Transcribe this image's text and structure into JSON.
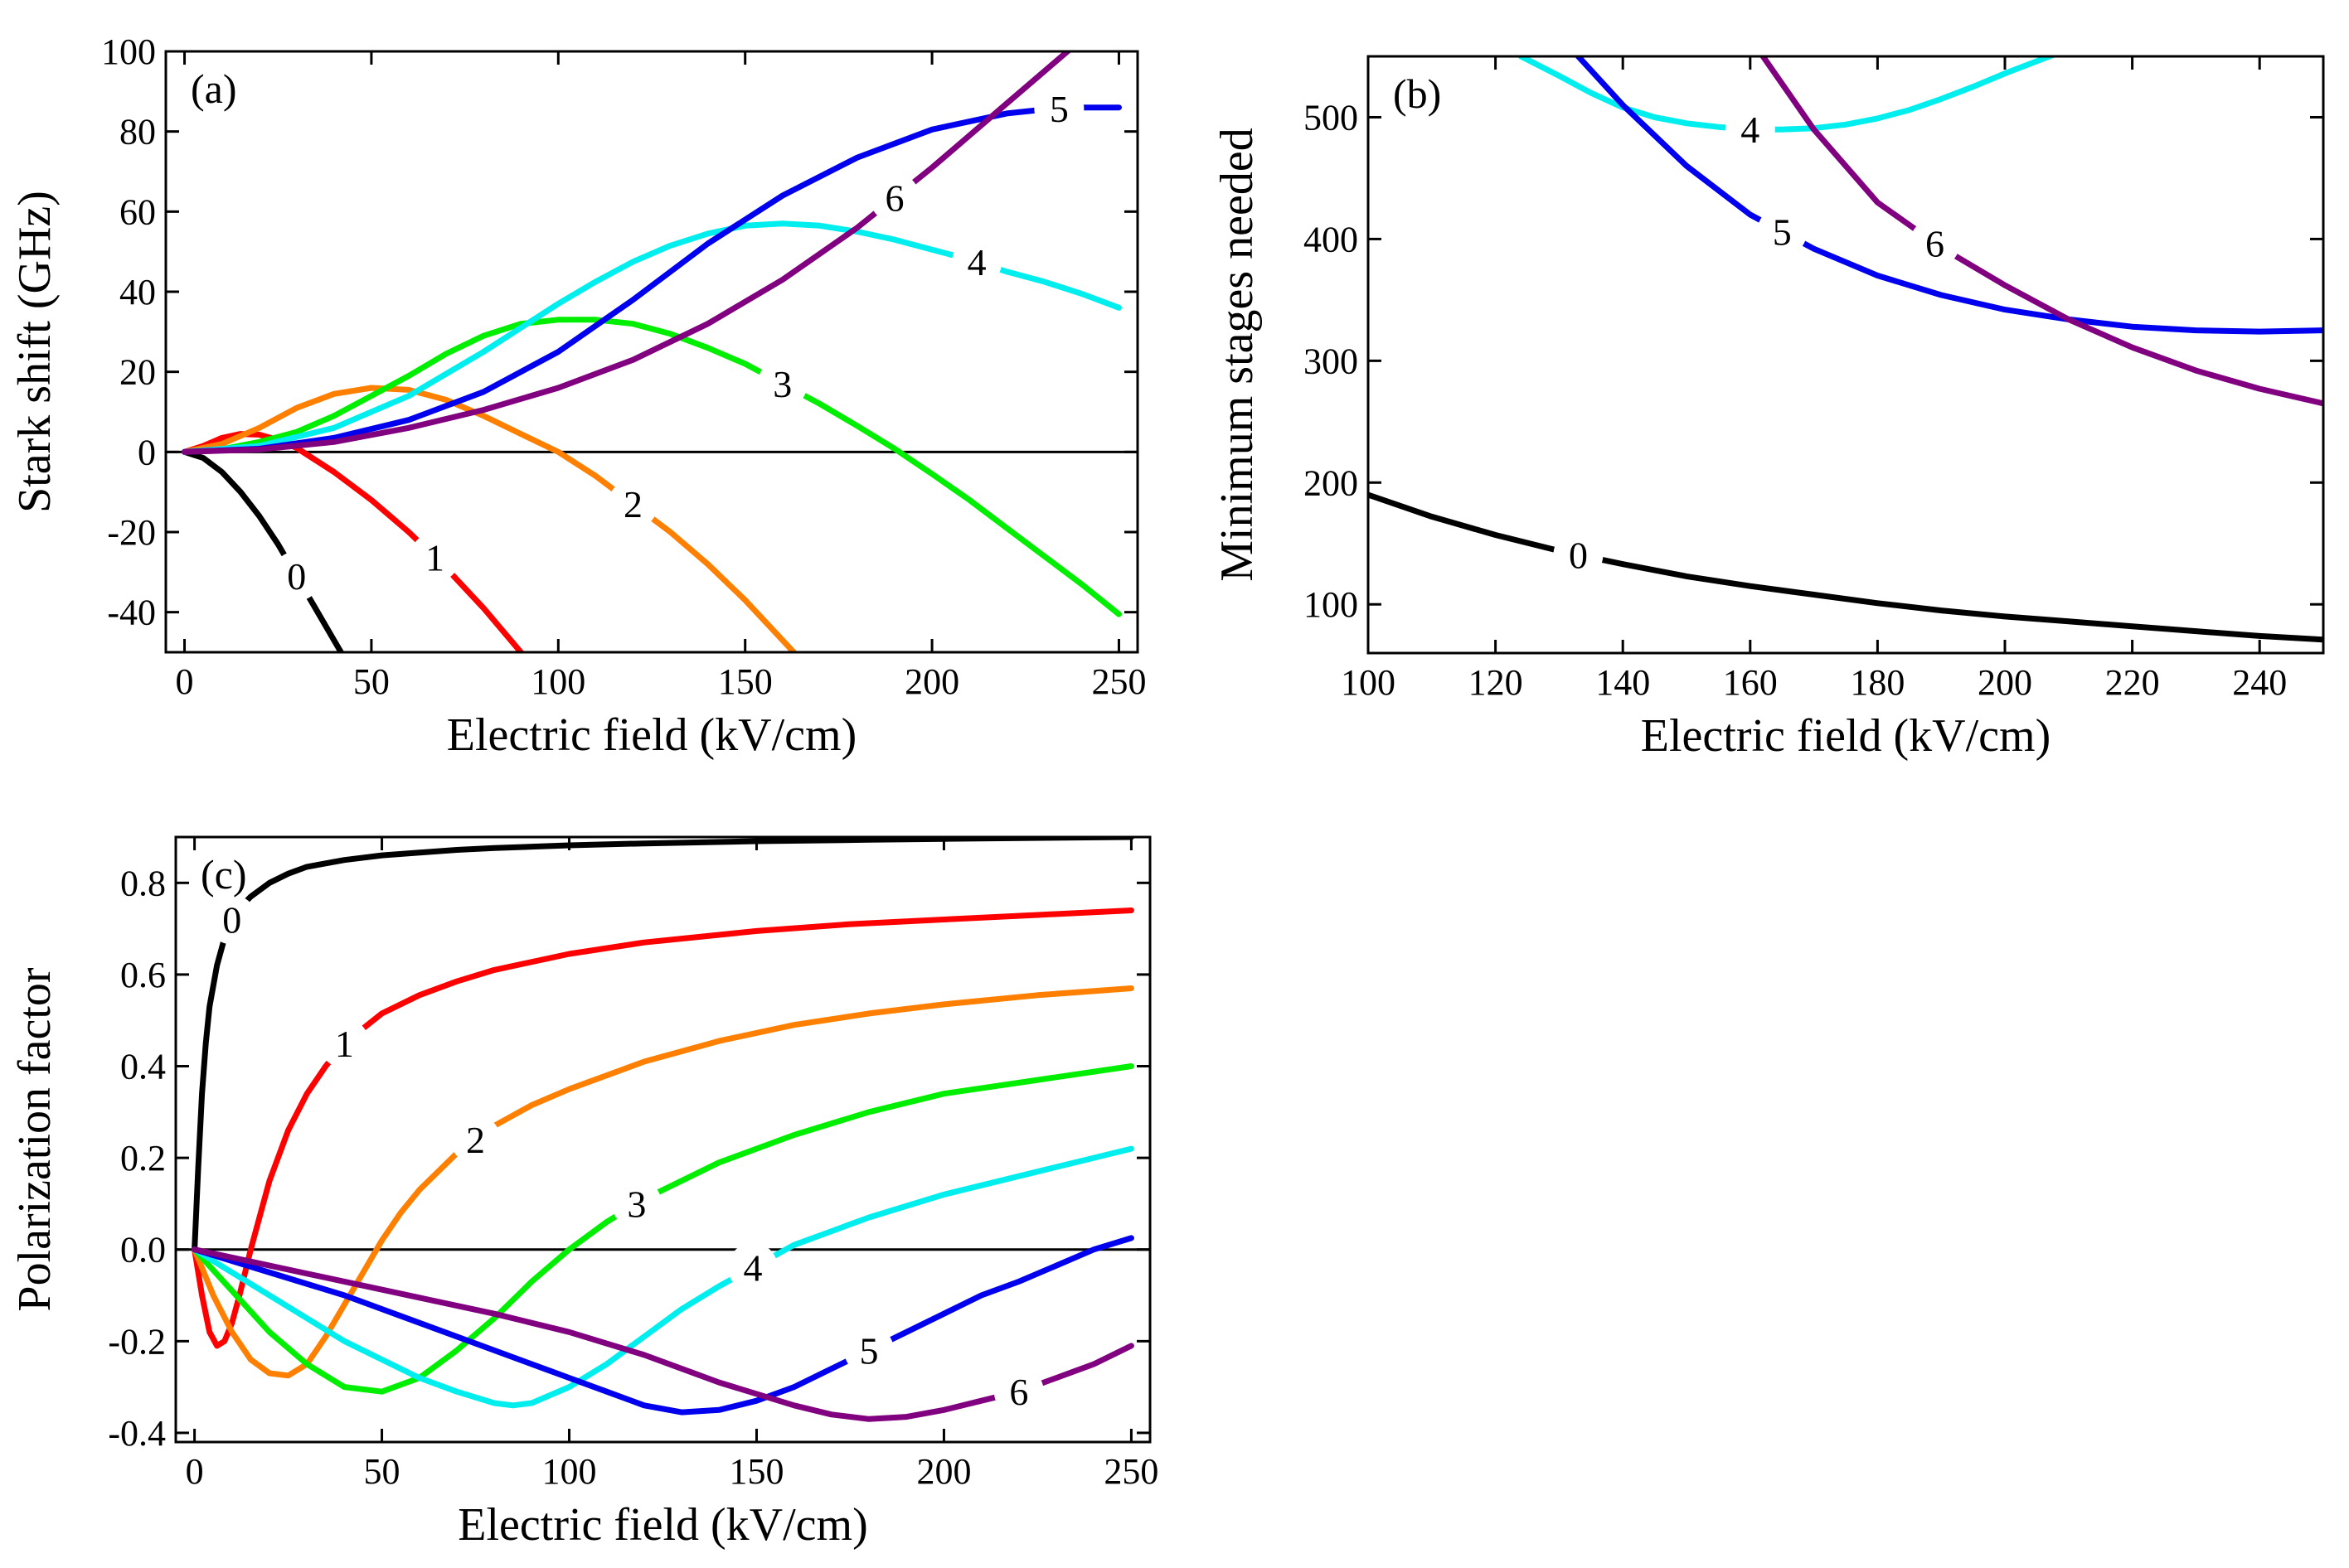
{
  "chart_data": [
    {
      "id": "a",
      "type": "line",
      "panel_label": "(a)",
      "xlabel": "Electric field (kV/cm)",
      "ylabel": "Stark shift (GHz)",
      "xlim": [
        -5,
        255
      ],
      "ylim": [
        -50,
        100
      ],
      "xticks": [
        0,
        50,
        100,
        150,
        200,
        250
      ],
      "yticks": [
        -40,
        -20,
        0,
        20,
        40,
        60,
        80,
        100
      ],
      "zero_line": true,
      "series": [
        {
          "name": "0",
          "color": "#000000",
          "x": [
            0,
            5,
            10,
            15,
            20,
            25,
            30,
            35,
            40,
            45
          ],
          "y": [
            0,
            -1.5,
            -5,
            -10,
            -16,
            -23,
            -31,
            -39,
            -47,
            -55
          ],
          "label_at": 30
        },
        {
          "name": "1",
          "color": "#ff0000",
          "x": [
            0,
            5,
            10,
            15,
            20,
            25,
            30,
            35,
            40,
            50,
            60,
            70,
            80,
            90,
            95
          ],
          "y": [
            0,
            1.5,
            3.5,
            4.5,
            4.3,
            3,
            1,
            -2,
            -5,
            -12,
            -20,
            -29,
            -39,
            -50,
            -56
          ],
          "label_at": 67
        },
        {
          "name": "2",
          "color": "#ff8000",
          "x": [
            0,
            10,
            20,
            30,
            40,
            50,
            60,
            70,
            80,
            90,
            100,
            110,
            120,
            130,
            140,
            150,
            160,
            165
          ],
          "y": [
            0,
            2,
            6,
            11,
            14.5,
            16,
            15.5,
            13,
            9,
            4.5,
            0,
            -6,
            -13,
            -20,
            -28,
            -37,
            -47,
            -52
          ],
          "label_at": 120
        },
        {
          "name": "3",
          "color": "#00ee00",
          "x": [
            0,
            10,
            20,
            30,
            40,
            50,
            60,
            70,
            80,
            90,
            100,
            110,
            120,
            130,
            140,
            150,
            160,
            170,
            180,
            190,
            200,
            210,
            220,
            230,
            240,
            250
          ],
          "y": [
            0,
            0.7,
            2.5,
            5,
            9,
            14,
            19,
            24.5,
            29,
            32,
            33,
            33,
            32,
            29.5,
            26,
            22,
            17,
            12,
            6.5,
            0.8,
            -5.5,
            -12,
            -19,
            -26,
            -33,
            -40.5
          ],
          "label_at": 160
        },
        {
          "name": "4",
          "color": "#00eeee",
          "x": [
            0,
            20,
            40,
            60,
            80,
            100,
            110,
            120,
            130,
            140,
            150,
            160,
            170,
            180,
            190,
            200,
            210,
            220,
            230,
            240,
            250
          ],
          "y": [
            0,
            1.5,
            6,
            14,
            25,
            37,
            42.5,
            47.5,
            51.5,
            54.5,
            56.5,
            57,
            56.5,
            55,
            53,
            50.5,
            48,
            45,
            42.5,
            39.5,
            36
          ],
          "label_at": 212
        },
        {
          "name": "5",
          "color": "#0000ee",
          "x": [
            0,
            20,
            40,
            60,
            80,
            100,
            120,
            140,
            160,
            180,
            200,
            220,
            230,
            240,
            250
          ],
          "y": [
            0,
            0.8,
            3.5,
            8,
            15,
            25,
            38,
            52,
            64,
            73.5,
            80.5,
            84.5,
            85.5,
            86,
            86
          ],
          "label_at": 234
        },
        {
          "name": "6",
          "color": "#800080",
          "x": [
            0,
            20,
            40,
            60,
            80,
            100,
            120,
            140,
            160,
            180,
            200,
            210,
            220,
            230,
            240
          ],
          "y": [
            0,
            0.6,
            2.5,
            6,
            10.5,
            16,
            23,
            32,
            43,
            56,
            71,
            79,
            87,
            95,
            103
          ],
          "label_at": 190
        }
      ]
    },
    {
      "id": "b",
      "type": "line",
      "panel_label": "(b)",
      "xlabel": "Electric field (kV/cm)",
      "ylabel": "Minimum stages needed",
      "xlim": [
        100,
        250
      ],
      "ylim": [
        60,
        550
      ],
      "xticks": [
        100,
        120,
        140,
        160,
        180,
        200,
        220,
        240
      ],
      "yticks": [
        100,
        200,
        300,
        400,
        500
      ],
      "zero_line": false,
      "series": [
        {
          "name": "0",
          "color": "#000000",
          "x": [
            100,
            110,
            120,
            130,
            140,
            150,
            160,
            170,
            180,
            190,
            200,
            210,
            220,
            230,
            240,
            250
          ],
          "y": [
            190,
            172,
            157,
            144,
            133,
            123,
            115,
            108,
            101,
            95,
            90,
            86,
            82,
            78,
            74,
            71
          ],
          "label_at": 133
        },
        {
          "name": "4",
          "color": "#00eeee",
          "x": [
            124,
            130,
            135,
            140,
            145,
            150,
            155,
            160,
            165,
            170,
            175,
            180,
            185,
            190,
            195,
            200,
            205,
            208
          ],
          "y": [
            550,
            534,
            520,
            508,
            500,
            495,
            492,
            490,
            490,
            491,
            494,
            499,
            506,
            515,
            525,
            536,
            546,
            552
          ],
          "label_at": 160
        },
        {
          "name": "5",
          "color": "#0000ee",
          "x": [
            133,
            140,
            150,
            160,
            170,
            180,
            190,
            200,
            210,
            220,
            230,
            240,
            250
          ],
          "y": [
            550,
            510,
            460,
            420,
            392,
            370,
            354,
            342,
            334,
            328,
            325,
            324,
            325
          ],
          "label_at": 165
        },
        {
          "name": "6",
          "color": "#800080",
          "x": [
            162,
            170,
            180,
            190,
            200,
            210,
            220,
            230,
            240,
            250
          ],
          "y": [
            550,
            490,
            430,
            393,
            362,
            334,
            311,
            292,
            277,
            265
          ],
          "label_at": 189
        }
      ]
    },
    {
      "id": "c",
      "type": "line",
      "panel_label": "(c)",
      "xlabel": "Electric field (kV/cm)",
      "ylabel": "Polarization factor",
      "xlim": [
        -5,
        255
      ],
      "ylim": [
        -0.42,
        0.9
      ],
      "xticks": [
        0,
        50,
        100,
        150,
        200,
        250
      ],
      "yticks": [
        -0.4,
        -0.2,
        0.0,
        0.2,
        0.4,
        0.6,
        0.8
      ],
      "ytick_labels": [
        "-0.4",
        "-0.2",
        "0.0",
        "0.2",
        "0.4",
        "0.6",
        "0.8"
      ],
      "zero_line": true,
      "series": [
        {
          "name": "0",
          "color": "#000000",
          "x": [
            0,
            1,
            2,
            3,
            4,
            6,
            8,
            10,
            12,
            15,
            20,
            25,
            30,
            40,
            50,
            60,
            70,
            80,
            100,
            120,
            150,
            180,
            200,
            250
          ],
          "y": [
            0,
            0.18,
            0.34,
            0.45,
            0.53,
            0.62,
            0.68,
            0.72,
            0.745,
            0.77,
            0.8,
            0.82,
            0.835,
            0.85,
            0.86,
            0.866,
            0.872,
            0.876,
            0.882,
            0.886,
            0.891,
            0.894,
            0.896,
            0.9
          ],
          "label_at": 10
        },
        {
          "name": "1",
          "color": "#ff0000",
          "x": [
            0,
            2,
            4,
            6,
            8,
            10,
            12,
            15,
            18,
            20,
            25,
            30,
            35,
            40,
            50,
            60,
            70,
            80,
            100,
            120,
            150,
            175,
            200,
            225,
            250
          ],
          "y": [
            0,
            -0.1,
            -0.18,
            -0.21,
            -0.2,
            -0.16,
            -0.1,
            0,
            0.09,
            0.15,
            0.26,
            0.34,
            0.4,
            0.45,
            0.515,
            0.555,
            0.585,
            0.61,
            0.645,
            0.67,
            0.695,
            0.71,
            0.72,
            0.73,
            0.74
          ],
          "label_at": 40
        },
        {
          "name": "2",
          "color": "#ff8000",
          "x": [
            0,
            5,
            10,
            15,
            20,
            25,
            30,
            35,
            40,
            45,
            50,
            55,
            60,
            70,
            80,
            90,
            100,
            120,
            140,
            160,
            180,
            200,
            225,
            250
          ],
          "y": [
            0,
            -0.1,
            -0.18,
            -0.24,
            -0.27,
            -0.275,
            -0.25,
            -0.19,
            -0.12,
            -0.05,
            0.02,
            0.08,
            0.13,
            0.21,
            0.27,
            0.315,
            0.35,
            0.41,
            0.455,
            0.49,
            0.515,
            0.535,
            0.555,
            0.57
          ],
          "label_at": 75
        },
        {
          "name": "3",
          "color": "#00ee00",
          "x": [
            0,
            10,
            20,
            30,
            40,
            50,
            60,
            70,
            80,
            90,
            100,
            110,
            120,
            140,
            160,
            180,
            200,
            225,
            250
          ],
          "y": [
            0,
            -0.09,
            -0.18,
            -0.25,
            -0.3,
            -0.31,
            -0.28,
            -0.22,
            -0.15,
            -0.07,
            0.0,
            0.06,
            0.11,
            0.19,
            0.25,
            0.3,
            0.34,
            0.37,
            0.4
          ],
          "label_at": 118
        },
        {
          "name": "4",
          "color": "#00eeee",
          "x": [
            0,
            10,
            20,
            30,
            40,
            50,
            60,
            70,
            80,
            85,
            90,
            100,
            110,
            120,
            130,
            140,
            150,
            160,
            170,
            180,
            200,
            225,
            250
          ],
          "y": [
            0,
            -0.05,
            -0.1,
            -0.15,
            -0.2,
            -0.24,
            -0.28,
            -0.31,
            -0.335,
            -0.34,
            -0.335,
            -0.3,
            -0.25,
            -0.19,
            -0.13,
            -0.08,
            -0.035,
            0.01,
            0.04,
            0.07,
            0.12,
            0.17,
            0.22
          ],
          "label_at": 149
        },
        {
          "name": "5",
          "color": "#0000ee",
          "x": [
            0,
            20,
            40,
            60,
            80,
            100,
            110,
            120,
            130,
            140,
            150,
            160,
            170,
            180,
            190,
            200,
            210,
            220,
            230,
            240,
            250
          ],
          "y": [
            0,
            -0.05,
            -0.1,
            -0.16,
            -0.22,
            -0.28,
            -0.31,
            -0.34,
            -0.355,
            -0.35,
            -0.33,
            -0.3,
            -0.26,
            -0.22,
            -0.18,
            -0.14,
            -0.1,
            -0.07,
            -0.035,
            0,
            0.025
          ],
          "label_at": 180
        },
        {
          "name": "6",
          "color": "#800080",
          "x": [
            0,
            20,
            40,
            60,
            80,
            100,
            120,
            140,
            160,
            170,
            180,
            190,
            200,
            210,
            220,
            230,
            240,
            250
          ],
          "y": [
            0,
            -0.035,
            -0.07,
            -0.105,
            -0.14,
            -0.18,
            -0.23,
            -0.29,
            -0.34,
            -0.36,
            -0.37,
            -0.365,
            -0.35,
            -0.33,
            -0.31,
            -0.28,
            -0.25,
            -0.21
          ],
          "label_at": 220
        }
      ]
    }
  ]
}
